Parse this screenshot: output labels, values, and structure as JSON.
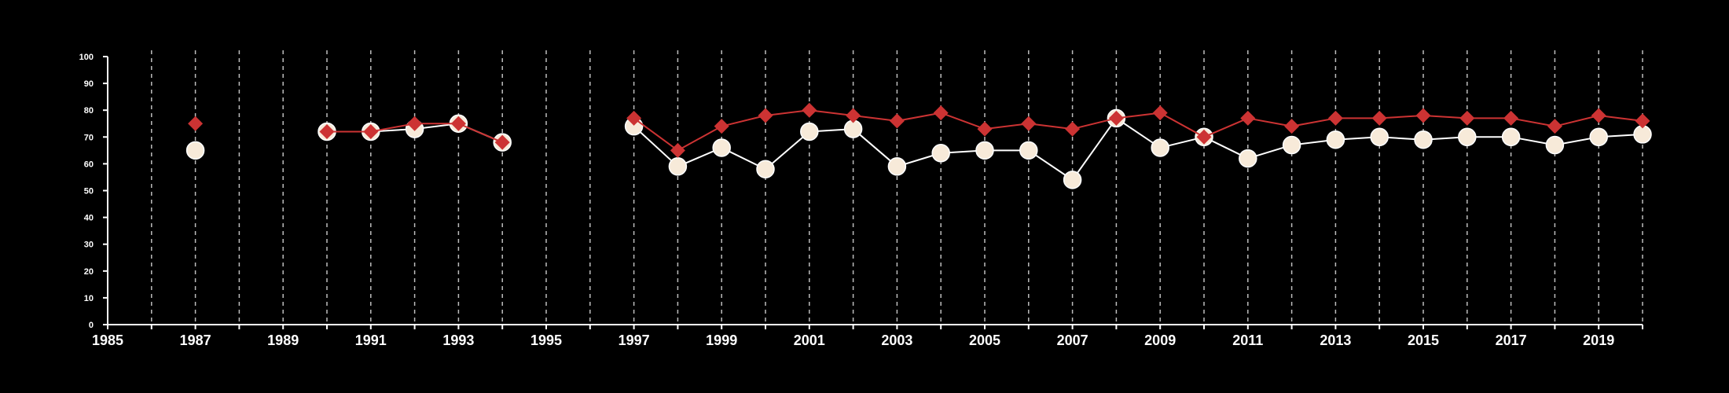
{
  "chart_data": {
    "type": "line",
    "xlim": [
      1985,
      2020
    ],
    "ylim": [
      0,
      100
    ],
    "x_ticks": [
      "1985",
      "1987",
      "1989",
      "1991",
      "1993",
      "1995",
      "1997",
      "1999",
      "2001",
      "2003",
      "2005",
      "2007",
      "2009",
      "2011",
      "2013",
      "2015",
      "2017",
      "2019"
    ],
    "y_ticks": [
      "0",
      "10",
      "20",
      "30",
      "40",
      "50",
      "60",
      "70",
      "80",
      "90",
      "100"
    ],
    "vertical_gridlines": "dashed, one per year",
    "background": "#000000",
    "series": [
      {
        "marker": "diamond",
        "color": "#cc3333",
        "points": [
          {
            "x": 1987,
            "y": 75
          },
          {
            "x": 1990,
            "y": 72
          },
          {
            "x": 1991,
            "y": 72
          },
          {
            "x": 1992,
            "y": 75
          },
          {
            "x": 1993,
            "y": 75
          },
          {
            "x": 1994,
            "y": 68
          },
          {
            "x": 1997,
            "y": 77
          },
          {
            "x": 1998,
            "y": 65
          },
          {
            "x": 1999,
            "y": 74
          },
          {
            "x": 2000,
            "y": 78
          },
          {
            "x": 2001,
            "y": 80
          },
          {
            "x": 2002,
            "y": 78
          },
          {
            "x": 2003,
            "y": 76
          },
          {
            "x": 2004,
            "y": 79
          },
          {
            "x": 2005,
            "y": 73
          },
          {
            "x": 2006,
            "y": 75
          },
          {
            "x": 2007,
            "y": 73
          },
          {
            "x": 2008,
            "y": 77
          },
          {
            "x": 2009,
            "y": 79
          },
          {
            "x": 2010,
            "y": 70
          },
          {
            "x": 2011,
            "y": 77
          },
          {
            "x": 2012,
            "y": 74
          },
          {
            "x": 2013,
            "y": 77
          },
          {
            "x": 2014,
            "y": 77
          },
          {
            "x": 2015,
            "y": 78
          },
          {
            "x": 2016,
            "y": 77
          },
          {
            "x": 2017,
            "y": 77
          },
          {
            "x": 2018,
            "y": 74
          },
          {
            "x": 2019,
            "y": 78
          },
          {
            "x": 2020,
            "y": 76
          }
        ]
      },
      {
        "marker": "circle",
        "color": "#f7ead9",
        "points": [
          {
            "x": 1987,
            "y": 65
          },
          {
            "x": 1990,
            "y": 72
          },
          {
            "x": 1991,
            "y": 72
          },
          {
            "x": 1992,
            "y": 73
          },
          {
            "x": 1993,
            "y": 75
          },
          {
            "x": 1994,
            "y": 68
          },
          {
            "x": 1997,
            "y": 74
          },
          {
            "x": 1998,
            "y": 59
          },
          {
            "x": 1999,
            "y": 66
          },
          {
            "x": 2000,
            "y": 58
          },
          {
            "x": 2001,
            "y": 72
          },
          {
            "x": 2002,
            "y": 73
          },
          {
            "x": 2003,
            "y": 59
          },
          {
            "x": 2004,
            "y": 64
          },
          {
            "x": 2005,
            "y": 65
          },
          {
            "x": 2006,
            "y": 65
          },
          {
            "x": 2007,
            "y": 54
          },
          {
            "x": 2008,
            "y": 77
          },
          {
            "x": 2009,
            "y": 66
          },
          {
            "x": 2010,
            "y": 70
          },
          {
            "x": 2011,
            "y": 62
          },
          {
            "x": 2012,
            "y": 67
          },
          {
            "x": 2013,
            "y": 69
          },
          {
            "x": 2014,
            "y": 70
          },
          {
            "x": 2015,
            "y": 69
          },
          {
            "x": 2016,
            "y": 70
          },
          {
            "x": 2017,
            "y": 70
          },
          {
            "x": 2018,
            "y": 67
          },
          {
            "x": 2019,
            "y": 70
          },
          {
            "x": 2020,
            "y": 71
          }
        ]
      }
    ]
  }
}
